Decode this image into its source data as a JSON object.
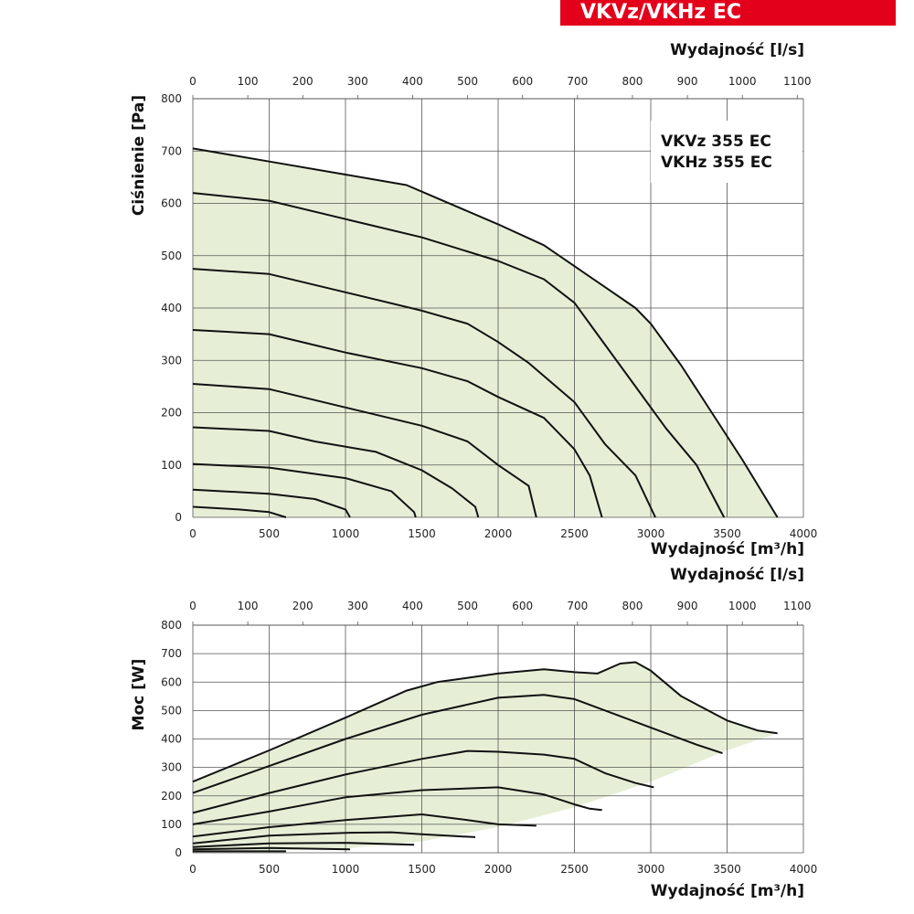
{
  "header": {
    "title": "VKVz/VKHz EC"
  },
  "chart_data": [
    {
      "type": "line",
      "title_lines": [
        "VKVz 355 EC",
        "VKHz 355 EC"
      ],
      "xlabel": "Wydajność [m³/h]",
      "x2label": "Wydajność [l/s]",
      "ylabel": "Ciśnienie [Pa]",
      "xlim": [
        0,
        4000
      ],
      "ylim": [
        0,
        800
      ],
      "x2lim": [
        0,
        1111
      ],
      "xticks": [
        0,
        500,
        1000,
        1500,
        2000,
        2500,
        3000,
        3500,
        4000
      ],
      "x2ticks": [
        0,
        100,
        200,
        300,
        400,
        500,
        600,
        700,
        800,
        900,
        1000,
        1100
      ],
      "yticks": [
        0,
        100,
        200,
        300,
        400,
        500,
        600,
        700,
        800
      ],
      "grid": true,
      "fill_color": "#e6efd6",
      "series": [
        {
          "points": [
            [
              0,
              705
            ],
            [
              500,
              680
            ],
            [
              1000,
              655
            ],
            [
              1400,
              635
            ],
            [
              1600,
              610
            ],
            [
              2000,
              560
            ],
            [
              2300,
              520
            ],
            [
              2500,
              480
            ],
            [
              2700,
              440
            ],
            [
              2900,
              400
            ],
            [
              3000,
              370
            ],
            [
              3200,
              290
            ],
            [
              3400,
              200
            ],
            [
              3600,
              110
            ],
            [
              3830,
              0
            ]
          ]
        },
        {
          "points": [
            [
              0,
              620
            ],
            [
              500,
              605
            ],
            [
              1000,
              570
            ],
            [
              1500,
              535
            ],
            [
              2000,
              490
            ],
            [
              2300,
              455
            ],
            [
              2500,
              410
            ],
            [
              2700,
              330
            ],
            [
              2900,
              250
            ],
            [
              3100,
              170
            ],
            [
              3300,
              100
            ],
            [
              3480,
              0
            ]
          ]
        },
        {
          "points": [
            [
              0,
              475
            ],
            [
              500,
              465
            ],
            [
              1000,
              430
            ],
            [
              1500,
              395
            ],
            [
              1800,
              370
            ],
            [
              2000,
              335
            ],
            [
              2200,
              295
            ],
            [
              2500,
              220
            ],
            [
              2700,
              140
            ],
            [
              2900,
              80
            ],
            [
              3030,
              0
            ]
          ]
        },
        {
          "points": [
            [
              0,
              358
            ],
            [
              500,
              350
            ],
            [
              1000,
              315
            ],
            [
              1500,
              285
            ],
            [
              1800,
              260
            ],
            [
              2000,
              230
            ],
            [
              2300,
              190
            ],
            [
              2500,
              130
            ],
            [
              2600,
              80
            ],
            [
              2680,
              0
            ]
          ]
        },
        {
          "points": [
            [
              0,
              255
            ],
            [
              500,
              245
            ],
            [
              1000,
              210
            ],
            [
              1500,
              175
            ],
            [
              1800,
              145
            ],
            [
              2000,
              100
            ],
            [
              2200,
              60
            ],
            [
              2250,
              0
            ]
          ]
        },
        {
          "points": [
            [
              0,
              172
            ],
            [
              500,
              165
            ],
            [
              800,
              145
            ],
            [
              1200,
              125
            ],
            [
              1500,
              90
            ],
            [
              1700,
              55
            ],
            [
              1850,
              20
            ],
            [
              1870,
              0
            ]
          ]
        },
        {
          "points": [
            [
              0,
              102
            ],
            [
              500,
              95
            ],
            [
              1000,
              75
            ],
            [
              1300,
              50
            ],
            [
              1450,
              10
            ],
            [
              1460,
              0
            ]
          ]
        },
        {
          "points": [
            [
              0,
              53
            ],
            [
              500,
              45
            ],
            [
              800,
              35
            ],
            [
              1000,
              15
            ],
            [
              1030,
              0
            ]
          ]
        },
        {
          "points": [
            [
              0,
              20
            ],
            [
              300,
              15
            ],
            [
              500,
              10
            ],
            [
              610,
              0
            ]
          ]
        }
      ]
    },
    {
      "type": "line",
      "xlabel": "Wydajność [m³/h]",
      "x2label": "Wydajność [l/s]",
      "ylabel": "Moc [W]",
      "xlim": [
        0,
        4000
      ],
      "ylim": [
        0,
        800
      ],
      "x2lim": [
        0,
        1111
      ],
      "xticks": [
        0,
        500,
        1000,
        1500,
        2000,
        2500,
        3000,
        3500,
        4000
      ],
      "x2ticks": [
        0,
        100,
        200,
        300,
        400,
        500,
        600,
        700,
        800,
        900,
        1000,
        1100
      ],
      "yticks": [
        0,
        100,
        200,
        300,
        400,
        500,
        600,
        700,
        800
      ],
      "grid": true,
      "fill_color": "#e6efd6",
      "fill_lower": [
        [
          0,
          0
        ],
        [
          1000,
          15
        ],
        [
          1500,
          40
        ],
        [
          2000,
          90
        ],
        [
          2500,
          160
        ],
        [
          3000,
          250
        ],
        [
          3500,
          360
        ],
        [
          3830,
          420
        ]
      ],
      "series": [
        {
          "points": [
            [
              0,
              250
            ],
            [
              500,
              360
            ],
            [
              1000,
              475
            ],
            [
              1400,
              570
            ],
            [
              1600,
              600
            ],
            [
              2000,
              630
            ],
            [
              2300,
              645
            ],
            [
              2500,
              635
            ],
            [
              2650,
              630
            ],
            [
              2800,
              665
            ],
            [
              2900,
              670
            ],
            [
              3000,
              640
            ],
            [
              3200,
              550
            ],
            [
              3500,
              465
            ],
            [
              3700,
              430
            ],
            [
              3830,
              420
            ]
          ]
        },
        {
          "points": [
            [
              0,
              210
            ],
            [
              500,
              305
            ],
            [
              1000,
              400
            ],
            [
              1500,
              485
            ],
            [
              2000,
              545
            ],
            [
              2300,
              555
            ],
            [
              2500,
              540
            ],
            [
              2800,
              480
            ],
            [
              3000,
              440
            ],
            [
              3300,
              380
            ],
            [
              3470,
              350
            ]
          ]
        },
        {
          "points": [
            [
              0,
              140
            ],
            [
              500,
              210
            ],
            [
              1000,
              275
            ],
            [
              1500,
              330
            ],
            [
              1800,
              358
            ],
            [
              2000,
              355
            ],
            [
              2300,
              345
            ],
            [
              2500,
              330
            ],
            [
              2700,
              280
            ],
            [
              2900,
              245
            ],
            [
              3020,
              230
            ]
          ]
        },
        {
          "points": [
            [
              0,
              100
            ],
            [
              500,
              145
            ],
            [
              1000,
              195
            ],
            [
              1500,
              220
            ],
            [
              2000,
              230
            ],
            [
              2300,
              205
            ],
            [
              2500,
              170
            ],
            [
              2600,
              155
            ],
            [
              2680,
              150
            ]
          ]
        },
        {
          "points": [
            [
              0,
              57
            ],
            [
              500,
              90
            ],
            [
              1000,
              115
            ],
            [
              1500,
              135
            ],
            [
              1800,
              115
            ],
            [
              2000,
              100
            ],
            [
              2250,
              95
            ]
          ]
        },
        {
          "points": [
            [
              0,
              33
            ],
            [
              500,
              60
            ],
            [
              1000,
              70
            ],
            [
              1300,
              72
            ],
            [
              1500,
              65
            ],
            [
              1850,
              55
            ]
          ]
        },
        {
          "points": [
            [
              0,
              20
            ],
            [
              500,
              33
            ],
            [
              1000,
              35
            ],
            [
              1450,
              28
            ]
          ]
        },
        {
          "points": [
            [
              0,
              12
            ],
            [
              500,
              17
            ],
            [
              1030,
              12
            ]
          ]
        },
        {
          "points": [
            [
              0,
              5
            ],
            [
              610,
              5
            ]
          ]
        }
      ]
    }
  ]
}
